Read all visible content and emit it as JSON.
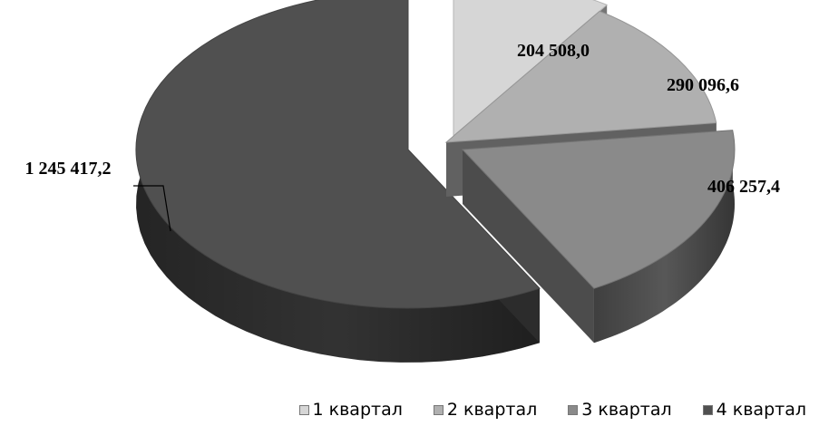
{
  "chart_data": {
    "type": "pie",
    "style": "3d-exploded",
    "categories": [
      "1 квартал",
      "2 квартал",
      "3 квартал",
      "4 квартал"
    ],
    "values": [
      204508.0,
      290096.6,
      406257.4,
      1245417.2
    ],
    "value_labels": [
      "204 508,0",
      "290 096,6",
      "406 257,4",
      "1 245 417,2"
    ],
    "colors": [
      "#d6d6d6",
      "#b0b0b0",
      "#8a8a8a",
      "#505050"
    ],
    "legend_position": "bottom"
  }
}
